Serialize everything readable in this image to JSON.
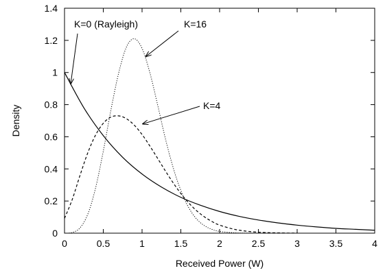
{
  "chart_data": {
    "type": "line",
    "title": "",
    "xlabel": "Received Power (W)",
    "ylabel": "Density",
    "xlim": [
      0,
      4
    ],
    "ylim": [
      0,
      1.4
    ],
    "xticks": [
      "0",
      "0.5",
      "1",
      "1.5",
      "2",
      "2.5",
      "3",
      "3.5",
      "4"
    ],
    "yticks": [
      "0",
      "0.2",
      "0.4",
      "0.6",
      "0.8",
      "1",
      "1.2",
      "1.4"
    ],
    "grid": false,
    "legend": "none",
    "series": [
      {
        "name": "K=0 (Rayleigh)",
        "style": "solid",
        "x": [
          0,
          0.25,
          0.5,
          0.75,
          1,
          1.25,
          1.5,
          1.75,
          2,
          2.25,
          2.5,
          2.75,
          3,
          3.25,
          3.5,
          3.75,
          4
        ],
        "y": [
          1.0,
          0.78,
          0.607,
          0.472,
          0.368,
          0.287,
          0.223,
          0.174,
          0.135,
          0.105,
          0.082,
          0.064,
          0.05,
          0.039,
          0.03,
          0.024,
          0.018
        ]
      },
      {
        "name": "K=4",
        "style": "dashed",
        "x": [
          0,
          0.1,
          0.2,
          0.3,
          0.4,
          0.5,
          0.6,
          0.7,
          0.8,
          0.9,
          1.0,
          1.1,
          1.2,
          1.3,
          1.4,
          1.5,
          1.6,
          1.7,
          1.8,
          1.9,
          2.0,
          2.2,
          2.4,
          2.6,
          2.8,
          3.0
        ],
        "y": [
          0.092,
          0.21,
          0.36,
          0.5,
          0.61,
          0.684,
          0.723,
          0.73,
          0.712,
          0.672,
          0.614,
          0.543,
          0.466,
          0.388,
          0.314,
          0.247,
          0.189,
          0.141,
          0.103,
          0.073,
          0.05,
          0.023,
          0.0095,
          0.0037,
          0.0013,
          0.0004
        ]
      },
      {
        "name": "K=16",
        "style": "dotted",
        "x": [
          0,
          0.1,
          0.2,
          0.3,
          0.4,
          0.5,
          0.6,
          0.7,
          0.8,
          0.9,
          1.0,
          1.1,
          1.2,
          1.3,
          1.4,
          1.5,
          1.6,
          1.7,
          1.8,
          1.9,
          2.0,
          2.2,
          2.4,
          2.6
        ],
        "y": [
          0.0,
          0.004,
          0.033,
          0.118,
          0.28,
          0.51,
          0.77,
          1.0,
          1.16,
          1.21,
          1.15,
          1.0,
          0.8,
          0.59,
          0.41,
          0.266,
          0.16,
          0.09,
          0.048,
          0.024,
          0.011,
          0.002,
          0.0003,
          0.0
        ]
      }
    ],
    "annotations": [
      {
        "text": "K=0 (Rayleigh)",
        "target_series": "K=0 (Rayleigh)"
      },
      {
        "text": "K=16",
        "target_series": "K=16"
      },
      {
        "text": "K=4",
        "target_series": "K=4"
      }
    ]
  }
}
